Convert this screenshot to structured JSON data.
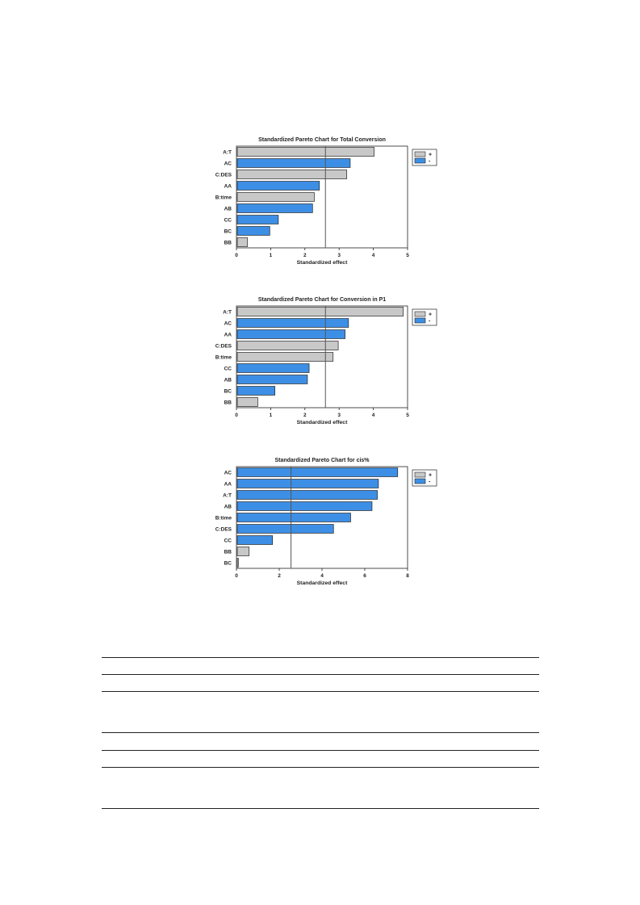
{
  "colors": {
    "positive": "#c8c8c8",
    "negative": "#3d8fe6",
    "border": "#222222",
    "refline": "#555555"
  },
  "chart_data": [
    {
      "type": "bar",
      "title": "Standardized Pareto Chart for Total Conversion",
      "xlabel": "Standardized effect",
      "ylabel": "",
      "categories": [
        "A:T",
        "AC",
        "C:DES",
        "AA",
        "B:time",
        "AB",
        "CC",
        "BC",
        "BB"
      ],
      "values": [
        4.0,
        3.3,
        3.2,
        2.4,
        2.25,
        2.2,
        1.2,
        0.95,
        0.3
      ],
      "signs": [
        "+",
        "-",
        "+",
        "-",
        "+",
        "-",
        "-",
        "-",
        "+"
      ],
      "xlim": [
        0,
        5
      ],
      "xticks": [
        "0",
        "1",
        "2",
        "3",
        "4",
        "5"
      ],
      "reference_line": 2.6,
      "legend": {
        "position": "top-right",
        "entries": [
          "+",
          "-"
        ]
      },
      "orientation": "horizontal"
    },
    {
      "type": "bar",
      "title": "Standardized Pareto Chart for Conversion in P1",
      "xlabel": "Standardized effect",
      "ylabel": "",
      "categories": [
        "A:T",
        "AC",
        "AA",
        "C:DES",
        "B:time",
        "CC",
        "AB",
        "BC",
        "BB"
      ],
      "values": [
        4.85,
        3.25,
        3.15,
        2.95,
        2.8,
        2.1,
        2.05,
        1.1,
        0.6
      ],
      "signs": [
        "+",
        "-",
        "-",
        "+",
        "+",
        "-",
        "-",
        "-",
        "+"
      ],
      "xlim": [
        0,
        5
      ],
      "xticks": [
        "0",
        "1",
        "2",
        "3",
        "4",
        "5"
      ],
      "reference_line": 2.6,
      "legend": {
        "position": "top-right",
        "entries": [
          "+",
          "-"
        ]
      },
      "orientation": "horizontal"
    },
    {
      "type": "bar",
      "title": "Standardized Pareto Chart for cis%",
      "xlabel": "Standardized effect",
      "ylabel": "",
      "categories": [
        "AC",
        "AA",
        "A:T",
        "AB",
        "B:time",
        "C:DES",
        "CC",
        "BB",
        "BC"
      ],
      "values": [
        7.5,
        6.6,
        6.55,
        6.3,
        5.3,
        4.5,
        1.65,
        0.55,
        0.05
      ],
      "signs": [
        "-",
        "-",
        "-",
        "-",
        "-",
        "-",
        "-",
        "+",
        "+"
      ],
      "xlim": [
        0,
        8
      ],
      "xticks": [
        "0",
        "2",
        "4",
        "6",
        "8"
      ],
      "reference_line": 2.55,
      "legend": {
        "position": "top-right",
        "entries": [
          "+",
          "-"
        ]
      },
      "orientation": "horizontal"
    }
  ]
}
